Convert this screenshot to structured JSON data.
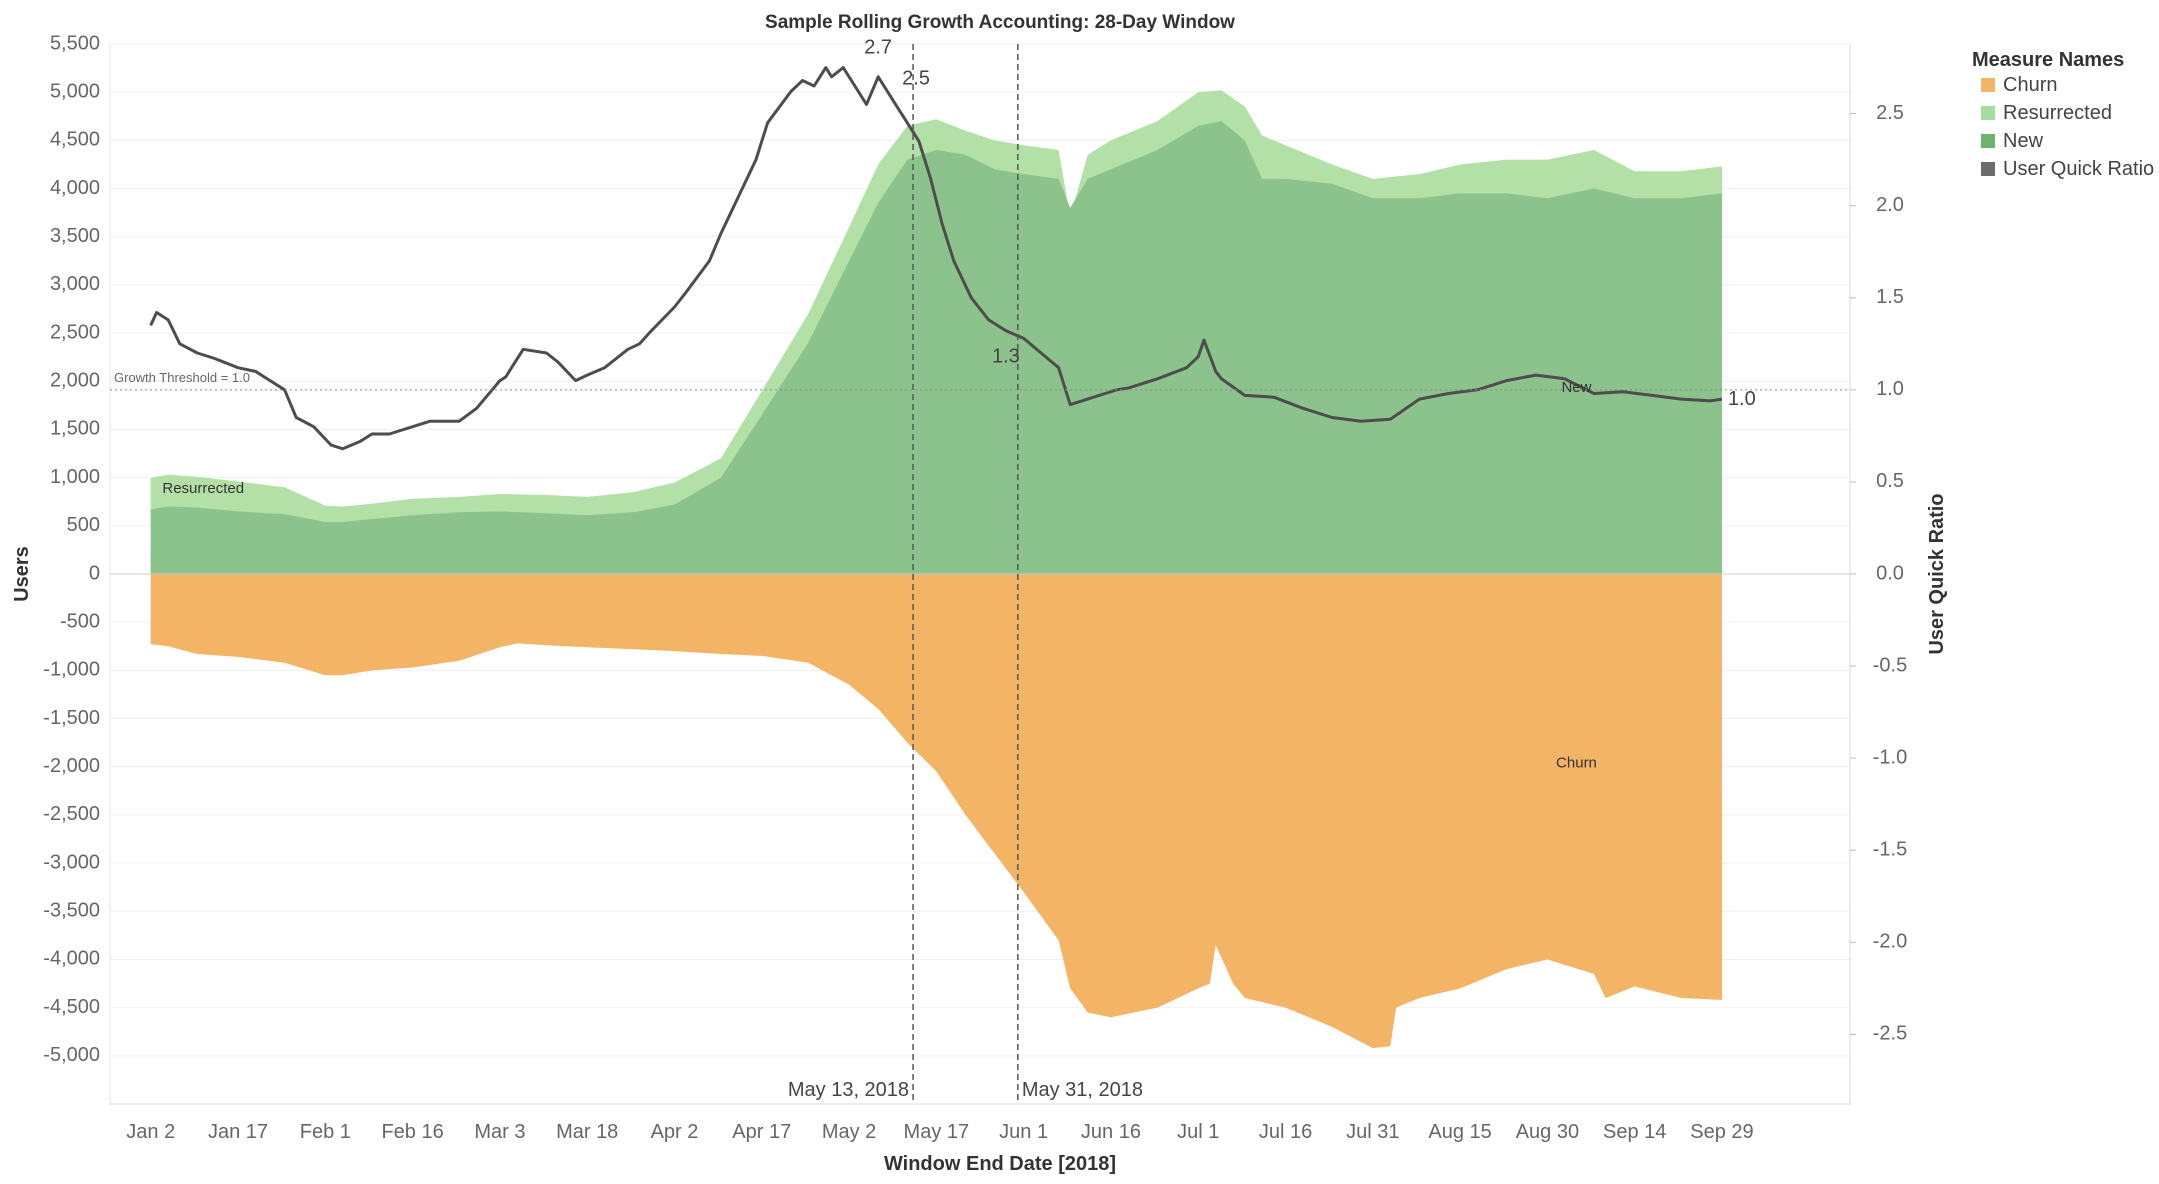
{
  "chart_data": {
    "type": "area",
    "title": "Sample Rolling Growth Accounting: 28-Day Window",
    "xlabel": "Window End Date [2018]",
    "ylabel": "Users",
    "y2label": "User Quick Ratio",
    "x_ticks": [
      "Jan 2",
      "Jan 17",
      "Feb 1",
      "Feb 16",
      "Mar 3",
      "Mar 18",
      "Apr 2",
      "Apr 17",
      "May 2",
      "May 17",
      "Jun 1",
      "Jun 16",
      "Jul 1",
      "Jul 16",
      "Jul 31",
      "Aug 15",
      "Aug 30",
      "Sep 14",
      "Sep 29"
    ],
    "x_tick_days": [
      2,
      17,
      32,
      47,
      62,
      77,
      92,
      107,
      122,
      137,
      152,
      167,
      182,
      197,
      212,
      227,
      242,
      257,
      272
    ],
    "xlim_days": [
      -5,
      294
    ],
    "ylim": [
      -5500,
      5500
    ],
    "y_ticks": [
      5500,
      5000,
      4500,
      4000,
      3500,
      3000,
      2500,
      2000,
      1500,
      1000,
      500,
      0,
      -500,
      -1000,
      -1500,
      -2000,
      -2500,
      -3000,
      -3500,
      -4000,
      -4500,
      -5000
    ],
    "y_tick_labels": [
      "5,500",
      "5,000",
      "4,500",
      "4,000",
      "3,500",
      "3,000",
      "2,500",
      "2,000",
      "1,500",
      "1,000",
      "500",
      "0",
      "-500",
      "-1,000",
      "-1,500",
      "-2,000",
      "-2,500",
      "-3,000",
      "-3,500",
      "-4,000",
      "-4,500",
      "-5,000"
    ],
    "y2lim": [
      -2.878,
      2.878
    ],
    "y2_ticks": [
      2.5,
      2.0,
      1.5,
      1.0,
      0.5,
      0.0,
      -0.5,
      -1.0,
      -1.5,
      -2.0,
      -2.5
    ],
    "y2_tick_labels": [
      "2.5",
      "2.0",
      "1.5",
      "1.0",
      "0.5",
      "0.0",
      "-0.5",
      "-1.0",
      "-1.5",
      "-2.0",
      "-2.5"
    ],
    "x_day_note": "x values are day of year 2018 (Jan 1 = 1)",
    "series": [
      {
        "name": "New",
        "color": "#8cc28c",
        "x": [
          2,
          5,
          10,
          17,
          25,
          32,
          35,
          40,
          47,
          55,
          62,
          70,
          77,
          85,
          92,
          100,
          107,
          115,
          122,
          127,
          132,
          137,
          142,
          147,
          152,
          158,
          160,
          163,
          167,
          175,
          182,
          186,
          190,
          193,
          197,
          205,
          212,
          220,
          227,
          235,
          242,
          250,
          257,
          265,
          272
        ],
        "values": [
          670,
          700,
          690,
          650,
          620,
          540,
          540,
          570,
          610,
          640,
          650,
          630,
          610,
          640,
          720,
          1000,
          1650,
          2400,
          3250,
          3850,
          4300,
          4400,
          4350,
          4200,
          4150,
          4100,
          3800,
          4100,
          4200,
          4400,
          4650,
          4700,
          4500,
          4100,
          4100,
          4050,
          3900,
          3900,
          3950,
          3950,
          3900,
          4000,
          3900,
          3900,
          3950
        ]
      },
      {
        "name": "Resurrected",
        "color": "#b3e0a6",
        "x": [
          2,
          5,
          10,
          17,
          25,
          32,
          35,
          40,
          47,
          55,
          62,
          70,
          77,
          85,
          92,
          100,
          107,
          115,
          122,
          127,
          132,
          137,
          142,
          147,
          152,
          158,
          160,
          163,
          167,
          175,
          182,
          186,
          190,
          193,
          197,
          205,
          212,
          220,
          227,
          235,
          242,
          250,
          257,
          265,
          272
        ],
        "values": [
          1000,
          1030,
          1010,
          960,
          900,
          710,
          700,
          730,
          780,
          800,
          830,
          820,
          800,
          850,
          950,
          1200,
          1900,
          2700,
          3600,
          4250,
          4650,
          4720,
          4600,
          4500,
          4450,
          4400,
          3700,
          4350,
          4500,
          4700,
          5000,
          5020,
          4850,
          4550,
          4450,
          4250,
          4100,
          4150,
          4250,
          4300,
          4300,
          4400,
          4180,
          4180,
          4230
        ]
      },
      {
        "name": "Churn",
        "color": "#f3b466",
        "x": [
          2,
          5,
          10,
          17,
          25,
          32,
          35,
          40,
          47,
          55,
          62,
          65,
          70,
          77,
          85,
          92,
          100,
          107,
          115,
          122,
          127,
          132,
          137,
          142,
          147,
          152,
          158,
          160,
          163,
          167,
          175,
          182,
          184,
          185,
          188,
          190,
          197,
          205,
          212,
          215,
          216,
          220,
          227,
          235,
          242,
          250,
          252,
          257,
          265,
          272
        ],
        "values": [
          -730,
          -750,
          -830,
          -860,
          -920,
          -1050,
          -1050,
          -1000,
          -970,
          -900,
          -760,
          -720,
          -740,
          -760,
          -780,
          -800,
          -830,
          -850,
          -920,
          -1150,
          -1400,
          -1750,
          -2050,
          -2500,
          -2900,
          -3300,
          -3800,
          -4300,
          -4550,
          -4600,
          -4500,
          -4300,
          -4250,
          -3850,
          -4250,
          -4400,
          -4500,
          -4700,
          -4920,
          -4900,
          -4500,
          -4400,
          -4300,
          -4100,
          -4000,
          -4150,
          -4400,
          -4280,
          -4400,
          -4420
        ]
      },
      {
        "name": "User Quick Ratio",
        "color": "#4d4d4d",
        "x": [
          2,
          3,
          5,
          7,
          10,
          13,
          17,
          20,
          25,
          27,
          30,
          33,
          35,
          38,
          40,
          43,
          47,
          50,
          55,
          58,
          62,
          63,
          66,
          70,
          72,
          75,
          77,
          80,
          84,
          86,
          88,
          92,
          94,
          98,
          100,
          103,
          106,
          108,
          112,
          114,
          116,
          118,
          119,
          121,
          123,
          125,
          127,
          128,
          130,
          132,
          134,
          136,
          138,
          140,
          143,
          146,
          149,
          152,
          155,
          158,
          160,
          162,
          164,
          166,
          168,
          170,
          175,
          180,
          182,
          183,
          185,
          186,
          190,
          195,
          200,
          205,
          210,
          215,
          220,
          225,
          230,
          235,
          240,
          245,
          250,
          255,
          260,
          265,
          270,
          272
        ],
        "values": [
          1.35,
          1.42,
          1.38,
          1.25,
          1.2,
          1.17,
          1.12,
          1.1,
          1.0,
          0.85,
          0.8,
          0.7,
          0.68,
          0.72,
          0.76,
          0.76,
          0.8,
          0.83,
          0.83,
          0.9,
          1.05,
          1.07,
          1.22,
          1.2,
          1.15,
          1.05,
          1.08,
          1.12,
          1.22,
          1.25,
          1.32,
          1.45,
          1.53,
          1.7,
          1.85,
          2.05,
          2.25,
          2.45,
          2.62,
          2.68,
          2.65,
          2.75,
          2.7,
          2.75,
          2.65,
          2.55,
          2.7,
          2.65,
          2.55,
          2.45,
          2.35,
          2.15,
          1.9,
          1.7,
          1.5,
          1.38,
          1.32,
          1.28,
          1.2,
          1.12,
          0.92,
          0.94,
          0.96,
          0.98,
          1.0,
          1.01,
          1.06,
          1.12,
          1.18,
          1.27,
          1.1,
          1.06,
          0.97,
          0.96,
          0.9,
          0.85,
          0.83,
          0.84,
          0.95,
          0.98,
          1.0,
          1.05,
          1.08,
          1.06,
          0.98,
          0.99,
          0.97,
          0.95,
          0.94,
          0.95
        ]
      }
    ],
    "reference_lines": [
      {
        "label": "May 13, 2018",
        "x_day": 133
      },
      {
        "label": "May 31, 2018",
        "x_day": 151
      }
    ],
    "threshold": {
      "label": "Growth Threshold = 1.0",
      "y2": 1.0
    },
    "point_labels": [
      {
        "text": "2.7",
        "x_day": 127,
        "y2": 2.75
      },
      {
        "text": "2.5",
        "x_day": 133,
        "y2": 2.55
      },
      {
        "text": "1.3",
        "x_day": 151,
        "y2": 1.28
      },
      {
        "text": "1.0",
        "x_day": 272,
        "y2": 0.95
      }
    ],
    "area_labels": [
      {
        "text": "Resurrected",
        "x_day": 4,
        "y": 840
      },
      {
        "text": "New",
        "x_day": 247,
        "y": 1890
      },
      {
        "text": "Churn",
        "x_day": 247,
        "y": -2010
      }
    ],
    "legend": {
      "title": "Measure Names",
      "placement": "right",
      "items": [
        {
          "label": "Churn",
          "color": "#f3b466"
        },
        {
          "label": "Resurrected",
          "color": "#a6dca0"
        },
        {
          "label": "New",
          "color": "#6db36d"
        },
        {
          "label": "User Quick Ratio",
          "color": "#6b6b6b"
        }
      ]
    }
  }
}
